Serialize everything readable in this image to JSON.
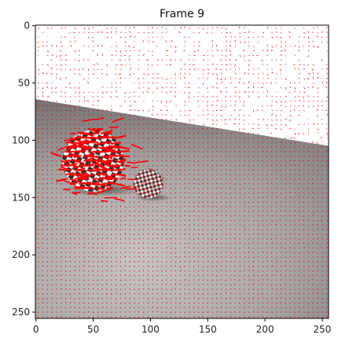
{
  "chart_data": {
    "type": "image",
    "title": "Frame 9",
    "xlabel": "",
    "ylabel": "",
    "xlim": [
      0,
      255
    ],
    "ylim": [
      255,
      0
    ],
    "xticks": [
      0,
      50,
      100,
      150,
      200,
      250
    ],
    "yticks": [
      0,
      50,
      100,
      150,
      200,
      250
    ],
    "grid": false,
    "image_content": {
      "background_top": "white",
      "background_bottom": "gray gradient floor",
      "horizon_line": {
        "x": [
          0,
          255
        ],
        "y": [
          64,
          105
        ]
      },
      "large_ball": {
        "center_x": 50,
        "center_y": 118,
        "radius": 27
      },
      "small_ball": {
        "center_x": 98,
        "center_y": 138,
        "radius": 13
      },
      "vector_color": "#ff0000"
    }
  }
}
